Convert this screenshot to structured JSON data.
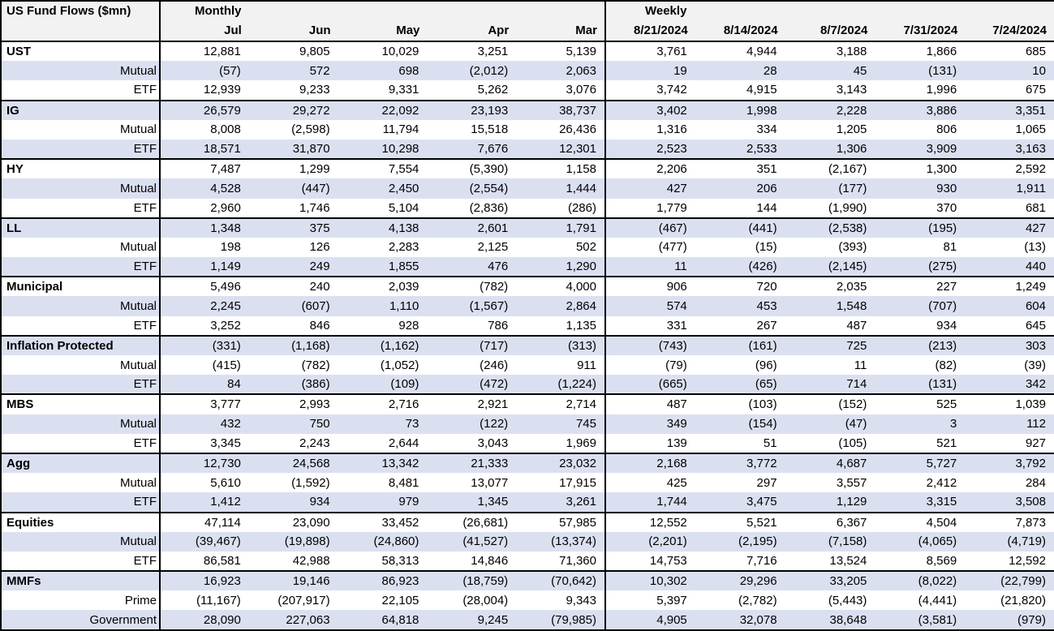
{
  "header": {
    "title": "US Fund Flows ($mn)",
    "monthly_label": "Monthly",
    "weekly_label": "Weekly"
  },
  "colors": {
    "band_row_bg": "#dbe0f1",
    "header_bg": "#f2f2f2",
    "border": "#000000",
    "text": "#000000"
  },
  "chart_data": {
    "type": "table",
    "title": "US Fund Flows ($mn)",
    "column_groups": [
      "Monthly",
      "Weekly"
    ],
    "monthly_columns": [
      "Jul",
      "Jun",
      "May",
      "Apr",
      "Mar"
    ],
    "weekly_columns": [
      "8/21/2024",
      "8/14/2024",
      "8/7/2024",
      "7/31/2024",
      "7/24/2024"
    ],
    "rows": [
      {
        "label": "UST",
        "kind": "group",
        "monthly": [
          "12,881",
          "9,805",
          "10,029",
          "3,251",
          "5,139"
        ],
        "weekly": [
          "3,761",
          "4,944",
          "3,188",
          "1,866",
          "685"
        ]
      },
      {
        "label": "Mutual",
        "kind": "sub",
        "monthly": [
          "(57)",
          "572",
          "698",
          "(2,012)",
          "2,063"
        ],
        "weekly": [
          "19",
          "28",
          "45",
          "(131)",
          "10"
        ]
      },
      {
        "label": "ETF",
        "kind": "sub",
        "monthly": [
          "12,939",
          "9,233",
          "9,331",
          "5,262",
          "3,076"
        ],
        "weekly": [
          "3,742",
          "4,915",
          "3,143",
          "1,996",
          "675"
        ]
      },
      {
        "label": "IG",
        "kind": "group",
        "monthly": [
          "26,579",
          "29,272",
          "22,092",
          "23,193",
          "38,737"
        ],
        "weekly": [
          "3,402",
          "1,998",
          "2,228",
          "3,886",
          "3,351"
        ]
      },
      {
        "label": "Mutual",
        "kind": "sub",
        "monthly": [
          "8,008",
          "(2,598)",
          "11,794",
          "15,518",
          "26,436"
        ],
        "weekly": [
          "1,316",
          "334",
          "1,205",
          "806",
          "1,065"
        ]
      },
      {
        "label": "ETF",
        "kind": "sub",
        "monthly": [
          "18,571",
          "31,870",
          "10,298",
          "7,676",
          "12,301"
        ],
        "weekly": [
          "2,523",
          "2,533",
          "1,306",
          "3,909",
          "3,163"
        ]
      },
      {
        "label": "HY",
        "kind": "group",
        "monthly": [
          "7,487",
          "1,299",
          "7,554",
          "(5,390)",
          "1,158"
        ],
        "weekly": [
          "2,206",
          "351",
          "(2,167)",
          "1,300",
          "2,592"
        ]
      },
      {
        "label": "Mutual",
        "kind": "sub",
        "monthly": [
          "4,528",
          "(447)",
          "2,450",
          "(2,554)",
          "1,444"
        ],
        "weekly": [
          "427",
          "206",
          "(177)",
          "930",
          "1,911"
        ]
      },
      {
        "label": "ETF",
        "kind": "sub",
        "monthly": [
          "2,960",
          "1,746",
          "5,104",
          "(2,836)",
          "(286)"
        ],
        "weekly": [
          "1,779",
          "144",
          "(1,990)",
          "370",
          "681"
        ]
      },
      {
        "label": "LL",
        "kind": "group",
        "monthly": [
          "1,348",
          "375",
          "4,138",
          "2,601",
          "1,791"
        ],
        "weekly": [
          "(467)",
          "(441)",
          "(2,538)",
          "(195)",
          "427"
        ]
      },
      {
        "label": "Mutual",
        "kind": "sub",
        "monthly": [
          "198",
          "126",
          "2,283",
          "2,125",
          "502"
        ],
        "weekly": [
          "(477)",
          "(15)",
          "(393)",
          "81",
          "(13)"
        ]
      },
      {
        "label": "ETF",
        "kind": "sub",
        "monthly": [
          "1,149",
          "249",
          "1,855",
          "476",
          "1,290"
        ],
        "weekly": [
          "11",
          "(426)",
          "(2,145)",
          "(275)",
          "440"
        ]
      },
      {
        "label": "Municipal",
        "kind": "group",
        "monthly": [
          "5,496",
          "240",
          "2,039",
          "(782)",
          "4,000"
        ],
        "weekly": [
          "906",
          "720",
          "2,035",
          "227",
          "1,249"
        ]
      },
      {
        "label": "Mutual",
        "kind": "sub",
        "monthly": [
          "2,245",
          "(607)",
          "1,110",
          "(1,567)",
          "2,864"
        ],
        "weekly": [
          "574",
          "453",
          "1,548",
          "(707)",
          "604"
        ]
      },
      {
        "label": "ETF",
        "kind": "sub",
        "monthly": [
          "3,252",
          "846",
          "928",
          "786",
          "1,135"
        ],
        "weekly": [
          "331",
          "267",
          "487",
          "934",
          "645"
        ]
      },
      {
        "label": "Inflation Protected",
        "kind": "group",
        "monthly": [
          "(331)",
          "(1,168)",
          "(1,162)",
          "(717)",
          "(313)"
        ],
        "weekly": [
          "(743)",
          "(161)",
          "725",
          "(213)",
          "303"
        ]
      },
      {
        "label": "Mutual",
        "kind": "sub",
        "monthly": [
          "(415)",
          "(782)",
          "(1,052)",
          "(246)",
          "911"
        ],
        "weekly": [
          "(79)",
          "(96)",
          "11",
          "(82)",
          "(39)"
        ]
      },
      {
        "label": "ETF",
        "kind": "sub",
        "monthly": [
          "84",
          "(386)",
          "(109)",
          "(472)",
          "(1,224)"
        ],
        "weekly": [
          "(665)",
          "(65)",
          "714",
          "(131)",
          "342"
        ]
      },
      {
        "label": "MBS",
        "kind": "group",
        "monthly": [
          "3,777",
          "2,993",
          "2,716",
          "2,921",
          "2,714"
        ],
        "weekly": [
          "487",
          "(103)",
          "(152)",
          "525",
          "1,039"
        ]
      },
      {
        "label": "Mutual",
        "kind": "sub",
        "monthly": [
          "432",
          "750",
          "73",
          "(122)",
          "745"
        ],
        "weekly": [
          "349",
          "(154)",
          "(47)",
          "3",
          "112"
        ]
      },
      {
        "label": "ETF",
        "kind": "sub",
        "monthly": [
          "3,345",
          "2,243",
          "2,644",
          "3,043",
          "1,969"
        ],
        "weekly": [
          "139",
          "51",
          "(105)",
          "521",
          "927"
        ]
      },
      {
        "label": "Agg",
        "kind": "group",
        "monthly": [
          "12,730",
          "24,568",
          "13,342",
          "21,333",
          "23,032"
        ],
        "weekly": [
          "2,168",
          "3,772",
          "4,687",
          "5,727",
          "3,792"
        ]
      },
      {
        "label": "Mutual",
        "kind": "sub",
        "monthly": [
          "5,610",
          "(1,592)",
          "8,481",
          "13,077",
          "17,915"
        ],
        "weekly": [
          "425",
          "297",
          "3,557",
          "2,412",
          "284"
        ]
      },
      {
        "label": "ETF",
        "kind": "sub",
        "monthly": [
          "1,412",
          "934",
          "979",
          "1,345",
          "3,261"
        ],
        "weekly": [
          "1,744",
          "3,475",
          "1,129",
          "3,315",
          "3,508"
        ]
      },
      {
        "label": "Equities",
        "kind": "group",
        "monthly": [
          "47,114",
          "23,090",
          "33,452",
          "(26,681)",
          "57,985"
        ],
        "weekly": [
          "12,552",
          "5,521",
          "6,367",
          "4,504",
          "7,873"
        ]
      },
      {
        "label": "Mutual",
        "kind": "sub",
        "monthly": [
          "(39,467)",
          "(19,898)",
          "(24,860)",
          "(41,527)",
          "(13,374)"
        ],
        "weekly": [
          "(2,201)",
          "(2,195)",
          "(7,158)",
          "(4,065)",
          "(4,719)"
        ]
      },
      {
        "label": "ETF",
        "kind": "sub",
        "monthly": [
          "86,581",
          "42,988",
          "58,313",
          "14,846",
          "71,360"
        ],
        "weekly": [
          "14,753",
          "7,716",
          "13,524",
          "8,569",
          "12,592"
        ]
      },
      {
        "label": "MMFs",
        "kind": "group",
        "monthly": [
          "16,923",
          "19,146",
          "86,923",
          "(18,759)",
          "(70,642)"
        ],
        "weekly": [
          "10,302",
          "29,296",
          "33,205",
          "(8,022)",
          "(22,799)"
        ]
      },
      {
        "label": "Prime",
        "kind": "sub",
        "monthly": [
          "(11,167)",
          "(207,917)",
          "22,105",
          "(28,004)",
          "9,343"
        ],
        "weekly": [
          "5,397",
          "(2,782)",
          "(5,443)",
          "(4,441)",
          "(21,820)"
        ]
      },
      {
        "label": "Government",
        "kind": "sub",
        "monthly": [
          "28,090",
          "227,063",
          "64,818",
          "9,245",
          "(79,985)"
        ],
        "weekly": [
          "4,905",
          "32,078",
          "38,648",
          "(3,581)",
          "(979)"
        ]
      }
    ]
  }
}
